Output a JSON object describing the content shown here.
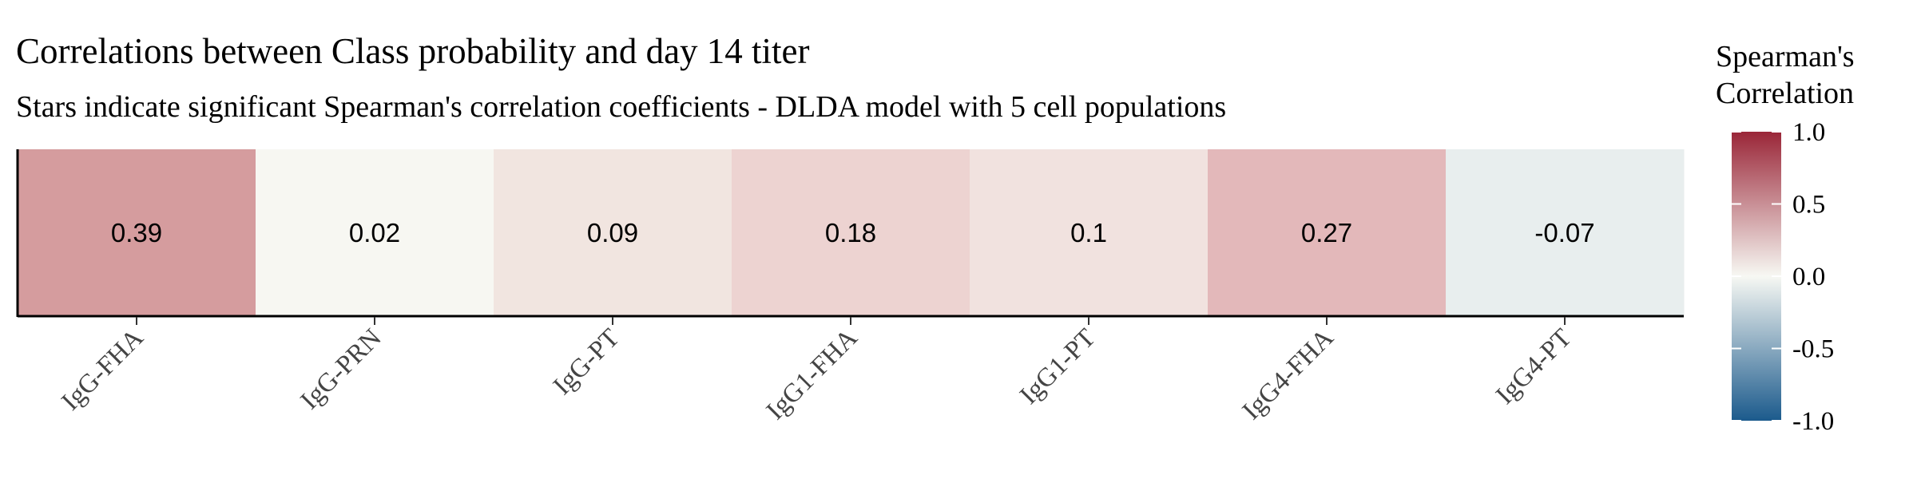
{
  "chart_data": {
    "type": "heatmap",
    "title": "Correlations between Class probability and day 14 titer",
    "subtitle": "Stars indicate significant Spearman's correlation coefficients - DLDA model with 5 cell populations",
    "categories": [
      "IgG-FHA",
      "IgG-PRN",
      "IgG-PT",
      "IgG1-FHA",
      "IgG1-PT",
      "IgG4-FHA",
      "IgG4-PT"
    ],
    "values": [
      0.39,
      0.02,
      0.09,
      0.18,
      0.1,
      0.27,
      -0.07
    ],
    "value_labels": [
      "0.39",
      "0.02",
      "0.09",
      "0.18",
      "0.1",
      "0.27",
      "-0.07"
    ],
    "legend": {
      "title_line1": "Spearman's",
      "title_line2": "Correlation",
      "range": [
        -1.0,
        1.0
      ],
      "ticks": [
        1.0,
        0.5,
        0.0,
        -0.5,
        -1.0
      ],
      "tick_labels": [
        "1.0",
        "0.5",
        "0.0",
        "-0.5",
        "-1.0"
      ],
      "placement": "right",
      "colors": {
        "low": "#1b5a8c",
        "mid": "#f7f8f3",
        "high": "#9a2638"
      }
    },
    "cell_colors": [
      "#d59c9e",
      "#f7f7f2",
      "#f1e5e0",
      "#edd3d1",
      "#f1e2df",
      "#e3b8ba",
      "#e8eeee"
    ]
  }
}
